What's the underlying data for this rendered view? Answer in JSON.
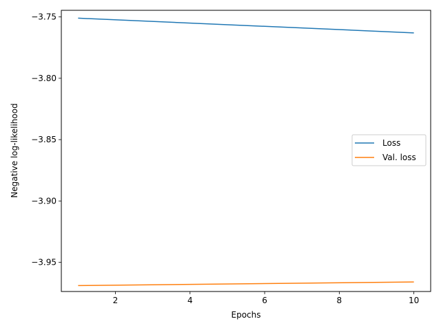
{
  "chart_data": {
    "type": "line",
    "title": "",
    "xlabel": "Epochs",
    "ylabel": "Negative log-likelihood",
    "xlim": [
      0.55,
      10.45
    ],
    "ylim": [
      -3.9738,
      -3.7446
    ],
    "xticks": [
      2,
      4,
      6,
      8,
      10
    ],
    "xtick_labels": [
      "2",
      "4",
      "6",
      "8",
      "10"
    ],
    "yticks": [
      -3.75,
      -3.8,
      -3.85,
      -3.9,
      -3.95
    ],
    "ytick_labels": [
      "−3.75",
      "−3.80",
      "−3.85",
      "−3.90",
      "−3.95"
    ],
    "grid": false,
    "legend_position": "center-right",
    "x": [
      1,
      10
    ],
    "series": [
      {
        "name": "Loss",
        "color": "#1f77b4",
        "values": [
          -3.751,
          -3.763
        ]
      },
      {
        "name": "Val. loss",
        "color": "#ff7f0e",
        "values": [
          -3.969,
          -3.966
        ]
      }
    ]
  }
}
